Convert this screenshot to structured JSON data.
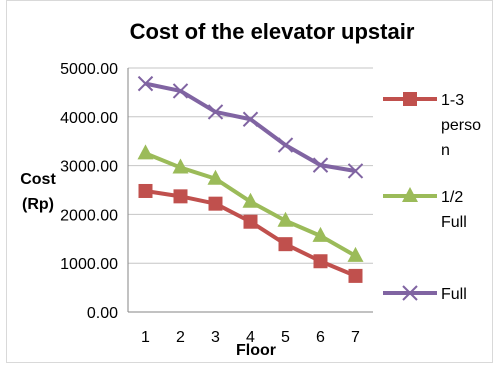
{
  "chart_data": {
    "type": "line",
    "title": "Cost of the elevator upstair",
    "xlabel": "Floor",
    "ylabel": "Cost (Rp)",
    "x": [
      1,
      2,
      3,
      4,
      5,
      6,
      7
    ],
    "ylim": [
      0,
      5000
    ],
    "yticks": [
      0,
      1000,
      2000,
      3000,
      4000,
      5000
    ],
    "ytick_labels": [
      "0.00",
      "1000.00",
      "2000.00",
      "3000.00",
      "4000.00",
      "5000.00"
    ],
    "xtick_labels": [
      "1",
      "2",
      "3",
      "4",
      "5",
      "6",
      "7"
    ],
    "grid": true,
    "legend_position": "right",
    "series": [
      {
        "name": "1-3 person",
        "marker": "square",
        "color": "#c0504d",
        "values": [
          2480,
          2370,
          2220,
          1850,
          1390,
          1040,
          740
        ]
      },
      {
        "name": "1/2 Full",
        "marker": "triangle",
        "color": "#9bbb59",
        "values": [
          3250,
          2960,
          2730,
          2260,
          1870,
          1560,
          1150
        ]
      },
      {
        "name": "Full",
        "marker": "x",
        "color": "#8064a2",
        "values": [
          4680,
          4530,
          4100,
          3950,
          3420,
          3010,
          2890
        ]
      }
    ]
  }
}
